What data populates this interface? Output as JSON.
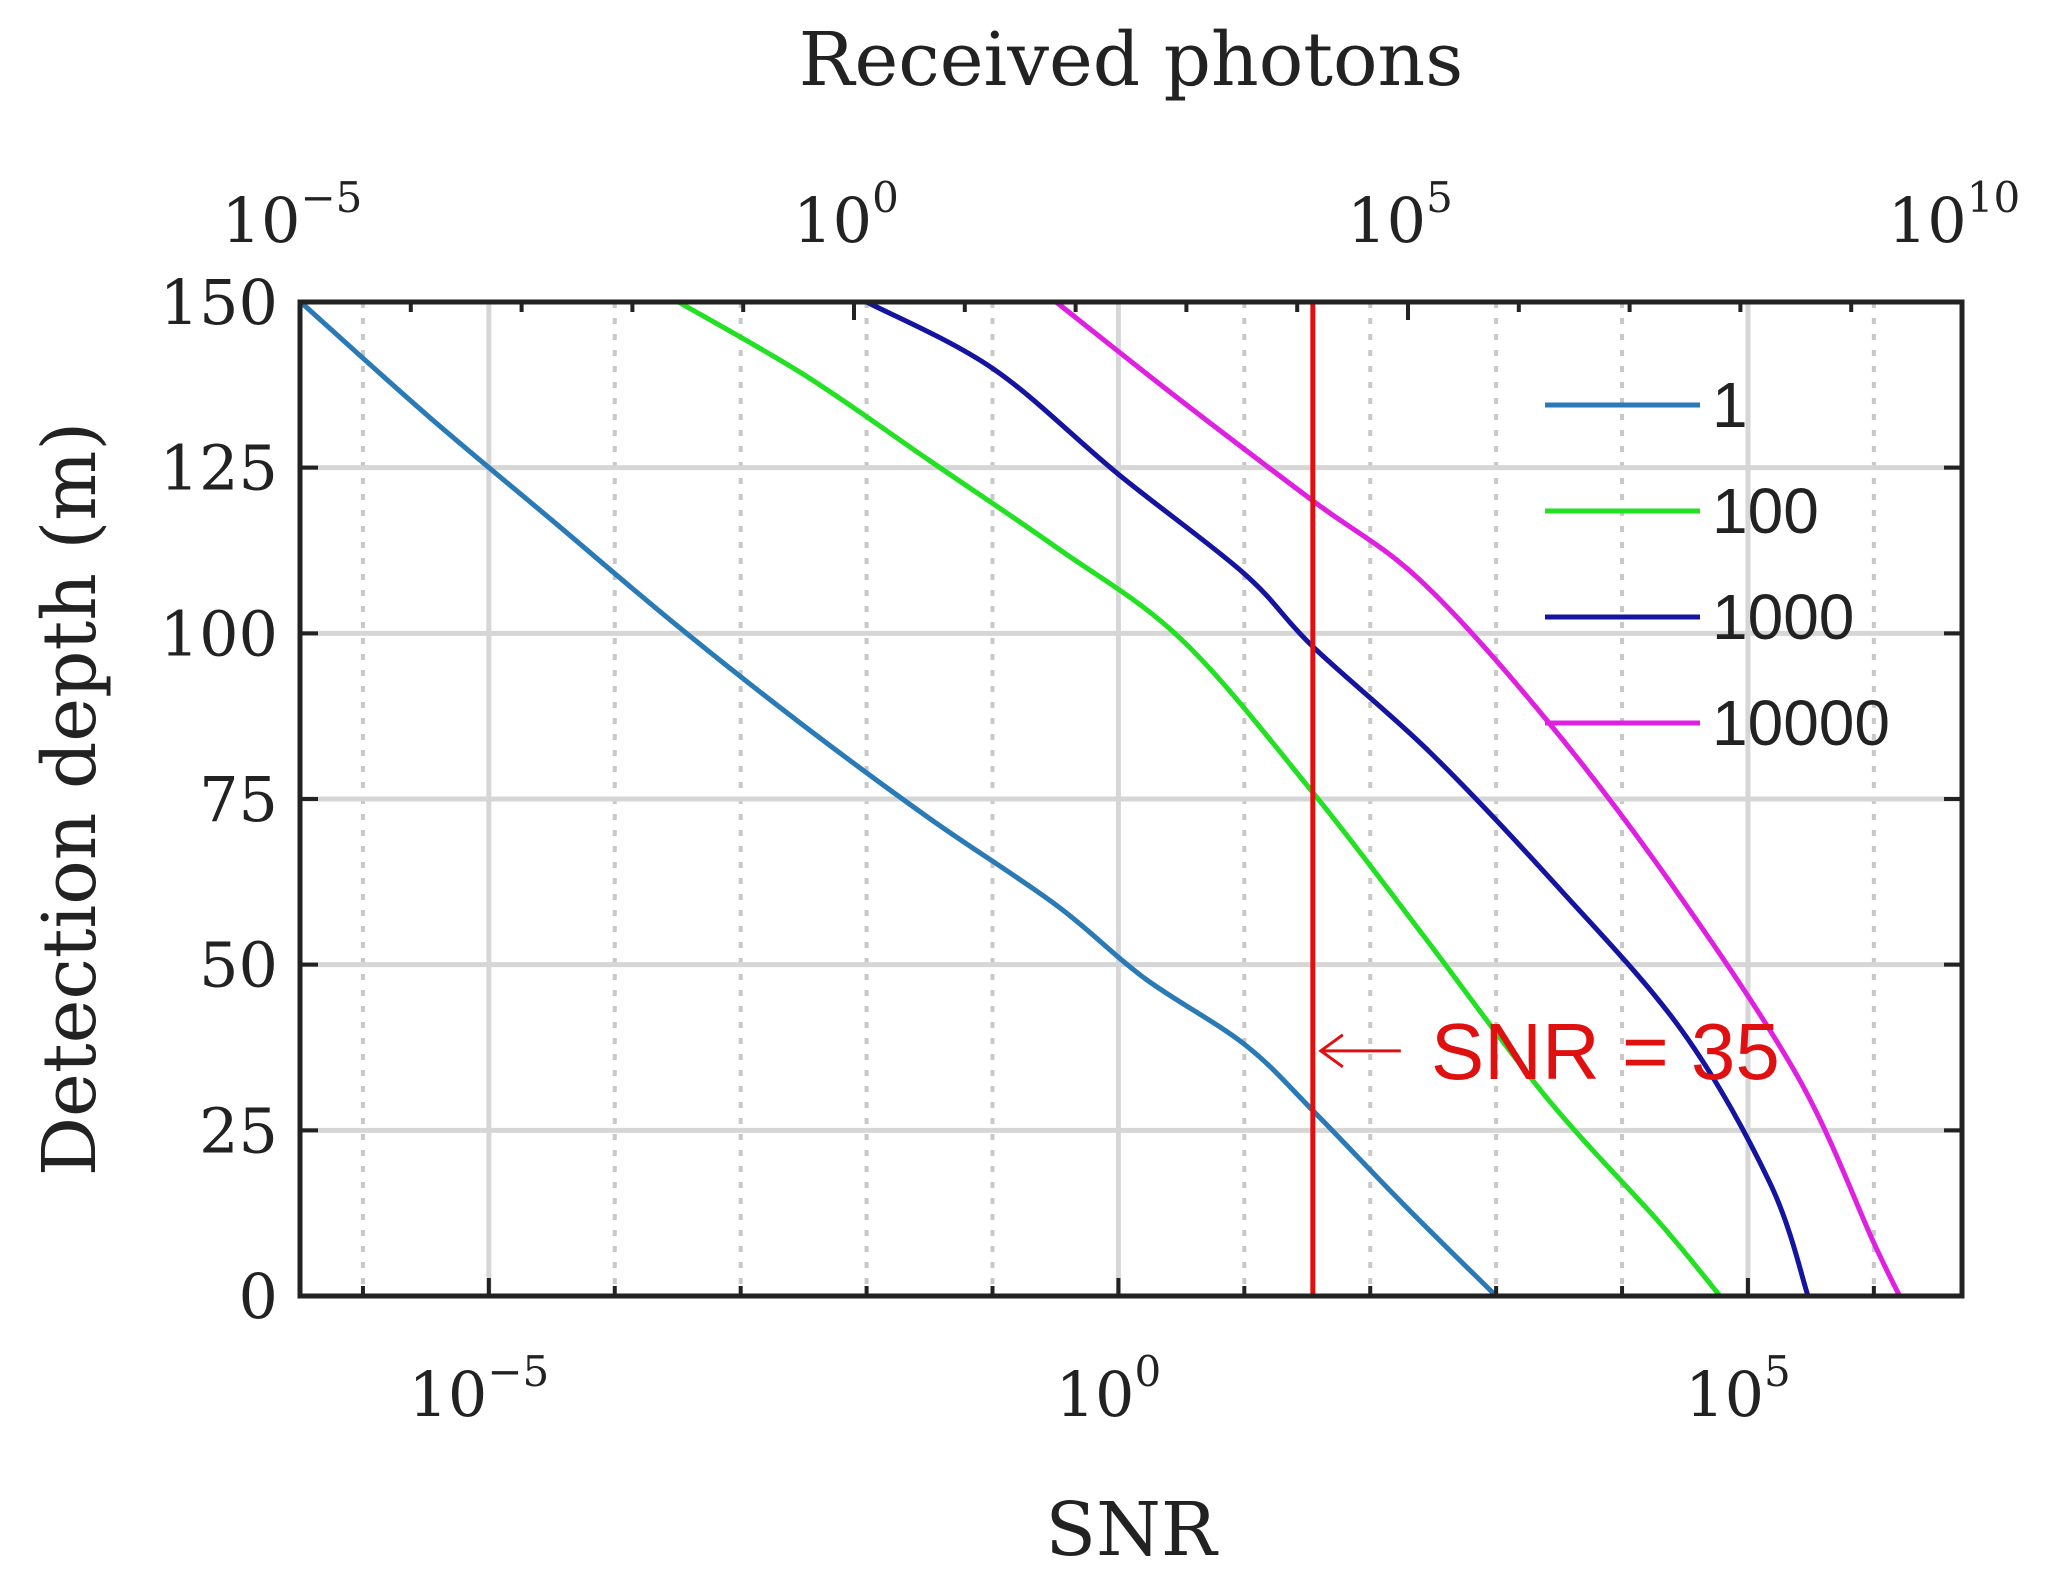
{
  "chart_data": {
    "type": "line",
    "xlabel": "SNR",
    "x2label": "Received photons",
    "ylabel": "Detection depth (m)",
    "xscale": "log",
    "x_log10_range": [
      -6.5,
      6.7
    ],
    "x2_log10_range": [
      -5,
      10
    ],
    "ylim": [
      0,
      150
    ],
    "yticks": [
      "0",
      "25",
      "50",
      "75",
      "100",
      "125",
      "150"
    ],
    "xticks": [
      {
        "base": "10",
        "exp": "−5"
      },
      {
        "base": "10",
        "exp": "0"
      },
      {
        "base": "10",
        "exp": "5"
      }
    ],
    "x2ticks": [
      {
        "base": "10",
        "exp": "−5"
      },
      {
        "base": "10",
        "exp": "0"
      },
      {
        "base": "10",
        "exp": "5"
      },
      {
        "base": "10",
        "exp": "10"
      }
    ],
    "grid": true,
    "legend_position": "top-right",
    "series": [
      {
        "name": "1",
        "color": "#2a7ab6",
        "points": [
          [
            3.2e-07,
            150
          ],
          [
            3.2e-06,
            133
          ],
          [
            3.2e-05,
            117
          ],
          [
            0.00032,
            101
          ],
          [
            0.0032,
            86
          ],
          [
            0.032,
            72
          ],
          [
            0.32,
            59
          ],
          [
            1.6,
            48
          ],
          [
            10,
            38
          ],
          [
            35,
            28
          ],
          [
            180,
            14
          ],
          [
            1000,
            0
          ]
        ]
      },
      {
        "name": "100",
        "color": "#22e022",
        "points": [
          [
            0.00032,
            150
          ],
          [
            0.0032,
            139
          ],
          [
            0.032,
            126
          ],
          [
            0.32,
            113
          ],
          [
            3.2,
            99
          ],
          [
            35,
            76
          ],
          [
            250,
            55
          ],
          [
            2500,
            30
          ],
          [
            20000,
            11
          ],
          [
            60000,
            0
          ]
        ]
      },
      {
        "name": "1000",
        "color": "#1414a0",
        "points": [
          [
            0.01,
            150
          ],
          [
            0.1,
            140
          ],
          [
            1,
            124
          ],
          [
            10,
            109
          ],
          [
            35,
            98
          ],
          [
            300,
            82
          ],
          [
            3000,
            62
          ],
          [
            30000,
            40
          ],
          [
            150000,
            17
          ],
          [
            300000,
            0
          ]
        ]
      },
      {
        "name": "10000",
        "color": "#e020e0",
        "points": [
          [
            0.32,
            150
          ],
          [
            3.2,
            135
          ],
          [
            35,
            120
          ],
          [
            250,
            108
          ],
          [
            2500,
            87
          ],
          [
            25000,
            62
          ],
          [
            250000,
            33
          ],
          [
            1000000,
            8
          ],
          [
            1600000,
            0
          ]
        ]
      }
    ],
    "threshold": {
      "value": 35,
      "color": "#e01010",
      "label": "SNR = 35"
    }
  }
}
